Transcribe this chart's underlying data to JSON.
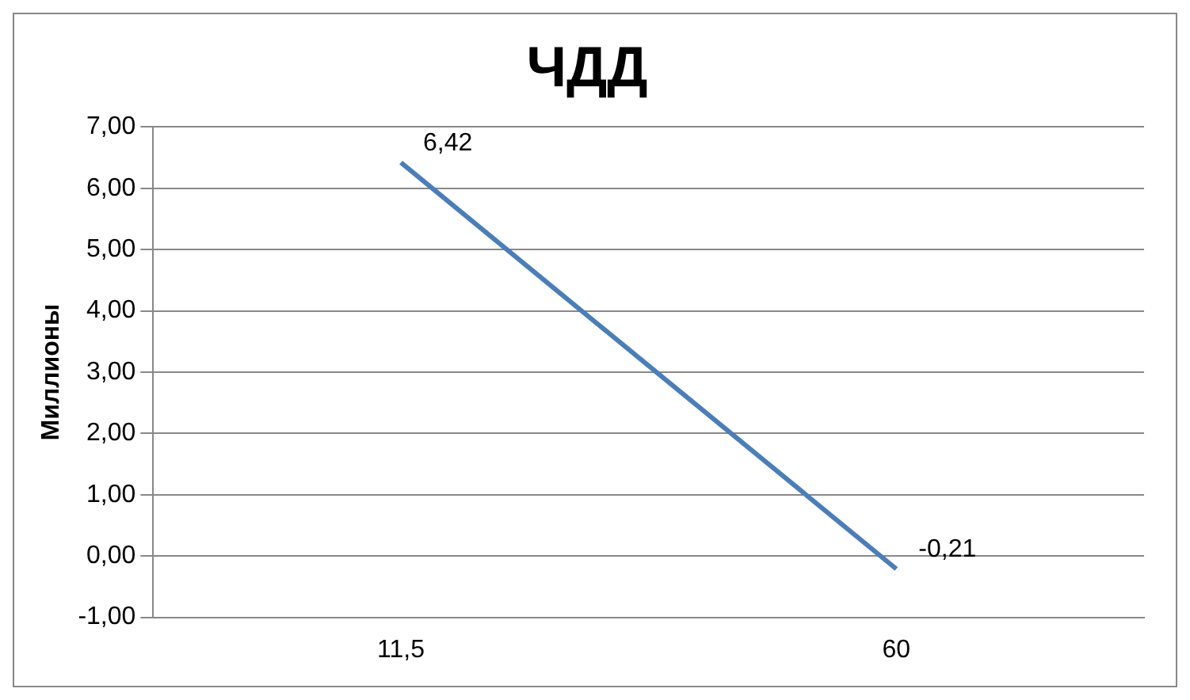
{
  "chart_data": {
    "type": "line",
    "title": "ЧДД",
    "ylabel": "Миллионы",
    "categories": [
      "11,5",
      "60"
    ],
    "series": [
      {
        "color": "#4a7ebb",
        "values": [
          6.42,
          -0.21
        ],
        "value_labels": [
          "6,42",
          "-0,21"
        ]
      }
    ],
    "ylim": [
      -1,
      7
    ],
    "yticks": [
      {
        "value": -1,
        "label": "-1,00"
      },
      {
        "value": 0,
        "label": "0,00"
      },
      {
        "value": 1,
        "label": "1,00"
      },
      {
        "value": 2,
        "label": "2,00"
      },
      {
        "value": 3,
        "label": "3,00"
      },
      {
        "value": 4,
        "label": "4,00"
      },
      {
        "value": 5,
        "label": "5,00"
      },
      {
        "value": 6,
        "label": "6,00"
      },
      {
        "value": 7,
        "label": "7,00"
      }
    ],
    "grid": "y",
    "legend": false,
    "marker": "none",
    "line_style": "solid"
  }
}
